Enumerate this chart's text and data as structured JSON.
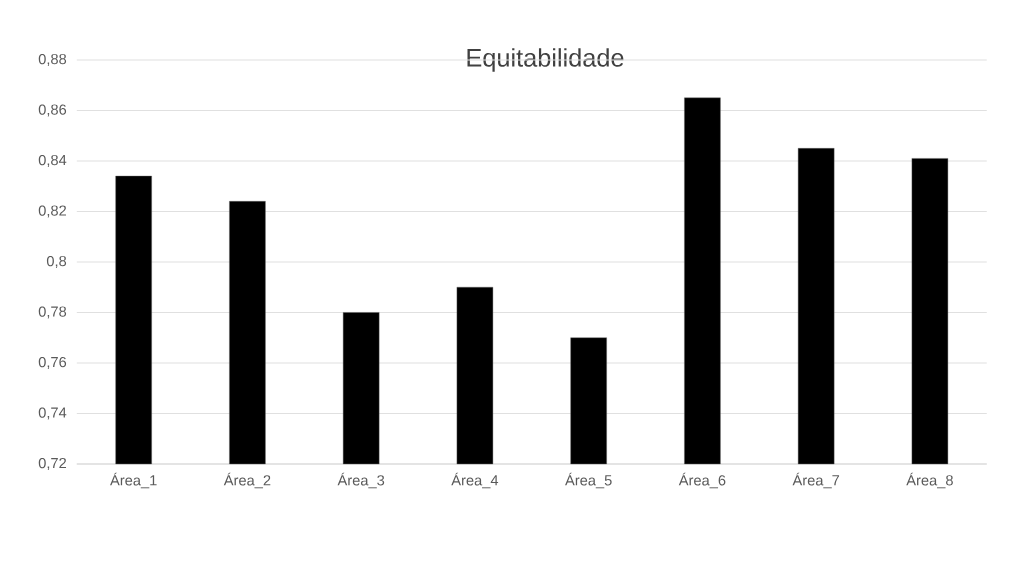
{
  "chart_data": {
    "type": "bar",
    "title": "Equitabilidade",
    "categories": [
      "Área_1",
      "Área_2",
      "Área_3",
      "Área_4",
      "Área_5",
      "Área_6",
      "Área_7",
      "Área_8"
    ],
    "values": [
      0.834,
      0.824,
      0.78,
      0.79,
      0.77,
      0.865,
      0.845,
      0.841
    ],
    "color": "#000000",
    "ylim": [
      0.72,
      0.88
    ],
    "yticks": [
      {
        "value": 0.72,
        "label": "0,72"
      },
      {
        "value": 0.74,
        "label": "0,74"
      },
      {
        "value": 0.76,
        "label": "0,76"
      },
      {
        "value": 0.78,
        "label": "0,78"
      },
      {
        "value": 0.8,
        "label": "0,8"
      },
      {
        "value": 0.82,
        "label": "0,82"
      },
      {
        "value": 0.84,
        "label": "0,84"
      },
      {
        "value": 0.86,
        "label": "0,86"
      },
      {
        "value": 0.88,
        "label": "0,88"
      }
    ],
    "grid": "y"
  }
}
